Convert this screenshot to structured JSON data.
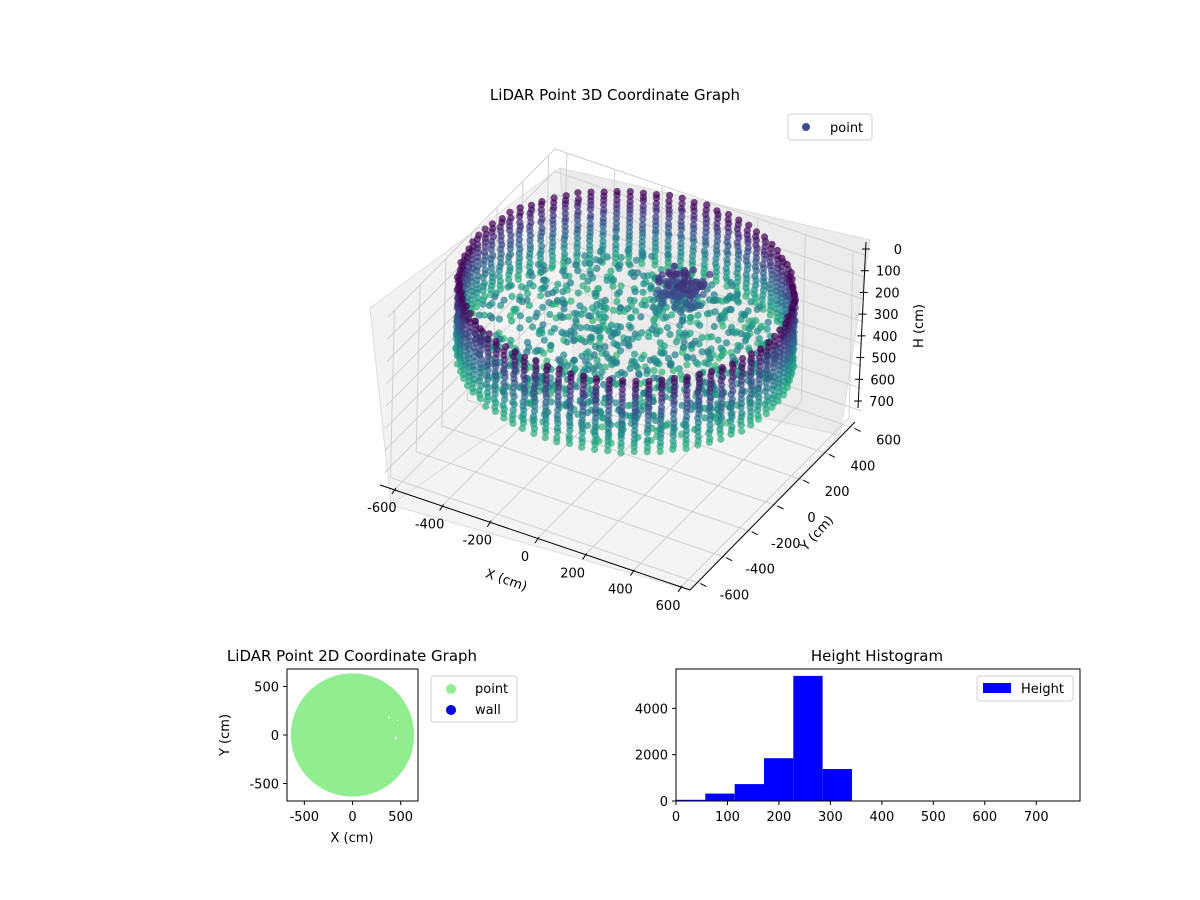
{
  "chart_data": [
    {
      "type": "scatter3d",
      "title": "LiDAR Point 3D Coordinate Graph",
      "xlabel": "X (cm)",
      "ylabel": "Y (cm)",
      "zlabel": "H (cm)",
      "xlim": [
        -650,
        650
      ],
      "ylim": [
        -650,
        650
      ],
      "zlim": [
        0,
        750
      ],
      "z_inverted": true,
      "x_ticks": [
        "-600",
        "-400",
        "-200",
        "0",
        "200",
        "400",
        "600"
      ],
      "y_ticks": [
        "-600",
        "-400",
        "-200",
        "0",
        "200",
        "400",
        "600"
      ],
      "z_ticks": [
        "0",
        "100",
        "200",
        "300",
        "400",
        "500",
        "600",
        "700"
      ],
      "legend": {
        "position": "top-right",
        "entries": [
          {
            "label": "point",
            "color": "#3b4d8f"
          }
        ]
      },
      "grid": true,
      "colormap": "viridis",
      "series": [
        {
          "name": "point",
          "description_shape": "cylindrical wall ring of radius ~620 cm, heights 0–320 cm, interior clutter",
          "ring_radius": 620,
          "ring_height_range": [
            0,
            320
          ]
        }
      ]
    },
    {
      "type": "scatter",
      "title": "LiDAR Point 2D Coordinate Graph",
      "xlabel": "X (cm)",
      "ylabel": "Y (cm)",
      "xlim": [
        -680,
        680
      ],
      "ylim": [
        -680,
        680
      ],
      "x_ticks": [
        "-500",
        "0",
        "500"
      ],
      "y_ticks": [
        "-500",
        "0",
        "500"
      ],
      "legend": {
        "position": "outside-right",
        "entries": [
          {
            "label": "point",
            "color": "#90ee90"
          },
          {
            "label": "wall",
            "color": "#0000ee"
          }
        ]
      },
      "series": [
        {
          "name": "point",
          "color": "#90ee90",
          "shape": "filled disk radius ~640 cm"
        },
        {
          "name": "wall",
          "color": "#0000ee",
          "points": []
        }
      ]
    },
    {
      "type": "bar",
      "title": "Height Histogram",
      "xlabel": "",
      "ylabel": "",
      "xlim": [
        0,
        785
      ],
      "ylim": [
        0,
        5700
      ],
      "x_ticks": [
        "0",
        "100",
        "200",
        "300",
        "400",
        "500",
        "600",
        "700"
      ],
      "y_ticks": [
        "0",
        "2000",
        "4000"
      ],
      "legend": {
        "position": "top-right",
        "entries": [
          {
            "label": "Height",
            "color": "#0000ff"
          }
        ]
      },
      "bin_edges": [
        0,
        57,
        114,
        171,
        228,
        285,
        342,
        399,
        456,
        513,
        570,
        627,
        684,
        741
      ],
      "values": [
        50,
        320,
        730,
        1850,
        5400,
        1380,
        15,
        6,
        4,
        3,
        2,
        2,
        1
      ],
      "color": "#0000ff"
    }
  ]
}
